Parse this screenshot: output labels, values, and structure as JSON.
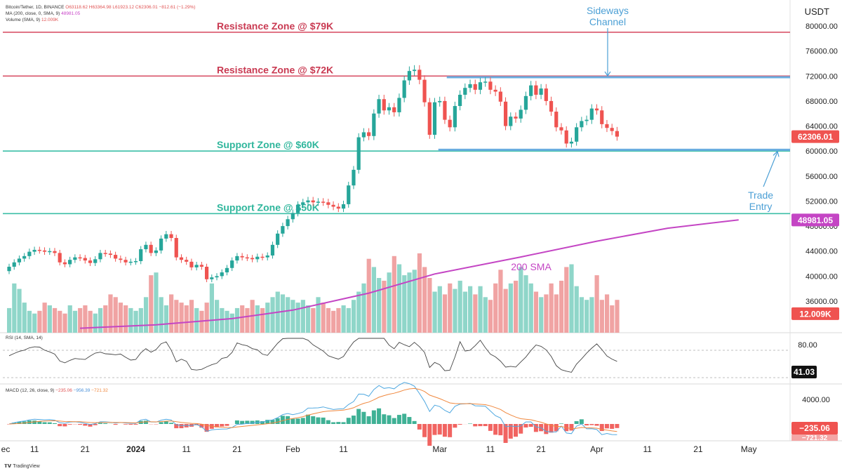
{
  "header": {
    "symbol": "Bitcoin/Tether, 1D, BINANCE",
    "ohlc": "O63118.62  H63364.98  L61923.12  C62306.01  −812.61 (−1.29%)",
    "ma_label": "MA (200, close, 0, SMA, 9)",
    "ma_value": "48981.05",
    "vol_label": "Volume (SMA, 9)",
    "vol_value": "12.009K"
  },
  "currency": "USDT",
  "footer": {
    "brand": "TradingView",
    "logo": "tradingview-logo-icon"
  },
  "rsi": {
    "label": "RSI (14, SMA, 14)",
    "value_label": "41.03",
    "value": 41.03,
    "tick": "80.00"
  },
  "macd": {
    "label": "MACD (12, 26, close, 9)",
    "v1": "−235.06",
    "v2": "−956.39",
    "v3": "−721.32",
    "value_label": "−235.06",
    "value2_label": "−721.32",
    "tick": "4000.00"
  },
  "colors": {
    "up": "#26a69a",
    "down": "#ef5350",
    "sma": "#c445c4",
    "resistance": "#d9546a",
    "support": "#3cbfa7",
    "channel": "#6aaee0",
    "annot_blue": "#4b9fd5"
  },
  "chart_data": {
    "type": "candlestick",
    "title": "",
    "y_axis": {
      "min": 32000,
      "max": 82000,
      "ticks": [
        "80000.00",
        "76000.00",
        "72000.00",
        "68000.00",
        "64000.00",
        "60000.00",
        "56000.00",
        "52000.00",
        "48000.00",
        "44000.00",
        "40000.00",
        "36000.00"
      ]
    },
    "x_ticks": [
      {
        "label": "ec",
        "day": -5
      },
      {
        "label": "11",
        "day": 5
      },
      {
        "label": "21",
        "day": 15
      },
      {
        "label": "2024",
        "day": 25
      },
      {
        "label": "11",
        "day": 35
      },
      {
        "label": "21",
        "day": 45
      },
      {
        "label": "Feb",
        "day": 56
      },
      {
        "label": "11",
        "day": 66
      },
      {
        "label": "Mar",
        "day": 85
      },
      {
        "label": "11",
        "day": 95
      },
      {
        "label": "21",
        "day": 105
      },
      {
        "label": "Apr",
        "day": 116
      },
      {
        "label": "11",
        "day": 126
      },
      {
        "label": "21",
        "day": 136
      },
      {
        "label": "May",
        "day": 146
      }
    ],
    "closes": [
      41500,
      42200,
      42800,
      43200,
      43900,
      44200,
      44100,
      43900,
      44000,
      43700,
      42200,
      41900,
      42600,
      43000,
      42900,
      42500,
      42100,
      42700,
      43700,
      43600,
      43400,
      42800,
      42600,
      42200,
      42300,
      42400,
      44300,
      45000,
      43700,
      44100,
      46000,
      46700,
      46100,
      43000,
      42600,
      42300,
      41400,
      41800,
      41500,
      39500,
      39800,
      40000,
      40600,
      41300,
      42500,
      43200,
      43000,
      42900,
      42700,
      43100,
      43000,
      43300,
      45000,
      46800,
      48000,
      49100,
      50100,
      51400,
      51800,
      52100,
      51800,
      51900,
      51800,
      51400,
      51100,
      50800,
      51500,
      54500,
      57000,
      62200,
      63000,
      62400,
      66000,
      68300,
      66500,
      67000,
      66200,
      68500,
      71300,
      72800,
      73000,
      71400,
      67800,
      62600,
      67800,
      68000,
      65000,
      63800,
      67200,
      69000,
      70100,
      70700,
      69800,
      71000,
      71100,
      69800,
      69500,
      67900,
      64000,
      65500,
      65200,
      66600,
      68800,
      70500,
      69000,
      70000,
      68000,
      66300,
      63800,
      63300,
      61200,
      61500,
      63800,
      64800,
      65000,
      66800,
      66500,
      64300,
      63700,
      63200,
      62306
    ],
    "volume_k": [
      9,
      18,
      16,
      11,
      8,
      7,
      8,
      11,
      10,
      9,
      8,
      7,
      10,
      8,
      9,
      10,
      8,
      7,
      9,
      10,
      14,
      13,
      11,
      10,
      9,
      8,
      9,
      13,
      21,
      22,
      13,
      10,
      14,
      12,
      11,
      10,
      12,
      9,
      8,
      11,
      18,
      12,
      9,
      8,
      7,
      9,
      10,
      9,
      12,
      10,
      9,
      11,
      13,
      15,
      14,
      13,
      12,
      11,
      12,
      10,
      9,
      13,
      11,
      9,
      8,
      9,
      10,
      9,
      12,
      15,
      18,
      27,
      24,
      20,
      19,
      22,
      28,
      25,
      21,
      22,
      23,
      29,
      24,
      20,
      15,
      17,
      14,
      18,
      16,
      19,
      15,
      17,
      14,
      17,
      13,
      12,
      18,
      23,
      16,
      18,
      19,
      24,
      21,
      18,
      15,
      13,
      14,
      18,
      14,
      19,
      24,
      25,
      17,
      13,
      12,
      13,
      21,
      12,
      14,
      10,
      12
    ],
    "sma200": [
      {
        "day": 14,
        "value": 29800
      },
      {
        "day": 29,
        "value": 30400
      },
      {
        "day": 44,
        "value": 31500
      },
      {
        "day": 56,
        "value": 33000
      },
      {
        "day": 71,
        "value": 36000
      },
      {
        "day": 84,
        "value": 39400
      },
      {
        "day": 101,
        "value": 42400
      },
      {
        "day": 116,
        "value": 45200
      },
      {
        "day": 130,
        "value": 47500
      },
      {
        "day": 144,
        "value": 48981.05
      }
    ],
    "levels": [
      {
        "label": "Resistance Zone @ $79K",
        "price": 79000,
        "kind": "resistance"
      },
      {
        "label": "Resistance Zone @ $72K",
        "price": 72000,
        "kind": "resistance"
      },
      {
        "label": "Support Zone @ $60K",
        "price": 60000,
        "kind": "support"
      },
      {
        "label": "Support Zone @ $50K",
        "price": 50000,
        "kind": "support"
      }
    ],
    "channel": {
      "top": 71800,
      "bottom": 60200,
      "start_day": 85,
      "end_day": 146
    },
    "annotations": [
      {
        "text": "Sideways",
        "text2": "Channel",
        "kind": "sideways"
      },
      {
        "text": "Trade",
        "text2": "Entry",
        "kind": "trade"
      },
      {
        "text": "200 SMA",
        "kind": "sma"
      }
    ],
    "price_tags": [
      {
        "label": "62306.01",
        "price": 62306,
        "color": "#ef5350"
      },
      {
        "label": "48981.05",
        "price": 48981,
        "color": "#c445c4"
      },
      {
        "label": "12.009K",
        "price": 34000,
        "color": "#ef5350"
      }
    ]
  }
}
